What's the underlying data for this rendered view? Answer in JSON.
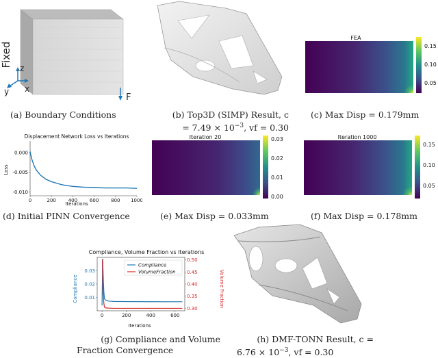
{
  "captions": {
    "a": "(a) Boundary Conditions",
    "b_line1": "(b) Top3D (SIMP) Result, c",
    "b_line2": "= 7.49 × 10",
    "b_exp": "−3",
    "b_tail": ", vf = 0.30",
    "c": "(c) Max Disp = 0.179mm",
    "d": "(d) Initial PINN Convergence",
    "e": "(e) Max Disp = 0.033mm",
    "f": "(f) Max Disp = 0.178mm",
    "g_line1": "(g) Compliance and Volume",
    "g_line2": "Fraction Convergence",
    "h_line1": "(h) DMF-TONN Result, c =",
    "h_line2": "6.76 × 10",
    "h_exp": "−3",
    "h_tail": ", vf = 0.30"
  },
  "panel_a": {
    "fixed_label": "Fixed",
    "axis_z": "z",
    "axis_y": "y",
    "axis_x": "x",
    "force_label": "F"
  },
  "panel_c": {
    "title": "FEA",
    "colorbar_ticks": [
      "0.15",
      "0.10",
      "0.05"
    ]
  },
  "panel_e": {
    "title": "Iteration 20",
    "colorbar_ticks": [
      "0.03",
      "0.02",
      "0.01",
      "0.00"
    ]
  },
  "panel_f": {
    "title": "Iteration 1000",
    "colorbar_ticks": [
      "0.15",
      "0.10",
      "0.05"
    ]
  },
  "chart_data": [
    {
      "id": "d",
      "type": "line",
      "title": "Displacement Network Loss vs Iterations",
      "xlabel": "Iterations",
      "ylabel": "Loss",
      "xlim": [
        0,
        1000
      ],
      "ylim": [
        -0.011,
        0.003
      ],
      "xticks": [
        "0",
        "200",
        "400",
        "600",
        "800",
        "1000"
      ],
      "yticks": [
        "0.000",
        "-0.005",
        "-0.010"
      ],
      "series": [
        {
          "color": "#1f77b4",
          "x": [
            0,
            10,
            20,
            40,
            60,
            100,
            150,
            200,
            300,
            400,
            500,
            600,
            700,
            800,
            900,
            1000
          ],
          "y": [
            0.0003,
            -0.001,
            -0.002,
            -0.0035,
            -0.0045,
            -0.0058,
            -0.0068,
            -0.0074,
            -0.0082,
            -0.0086,
            -0.0088,
            -0.0089,
            -0.009,
            -0.009,
            -0.009,
            -0.0091
          ]
        }
      ]
    },
    {
      "id": "g",
      "type": "line",
      "title": "Compliance, Volume Fraction vs Iterations",
      "xlabel": "Iterations",
      "ylabel_left": "Compliance",
      "ylabel_right": "Volume Fraction",
      "xlim": [
        -40,
        680
      ],
      "ylim_left": [
        0.0,
        0.04
      ],
      "ylim_right": [
        0.29,
        0.51
      ],
      "xticks": [
        "0",
        "200",
        "400",
        "600"
      ],
      "yticks_left": [
        "0.01",
        "0.02",
        "0.03"
      ],
      "yticks_right": [
        "0.50",
        "0.45",
        "0.40",
        "0.35",
        "0.30"
      ],
      "series": [
        {
          "name": "Compliance",
          "axis": "left",
          "color": "#1f77b4",
          "x": [
            0,
            5,
            10,
            15,
            20,
            30,
            40,
            60,
            100,
            200,
            400,
            600,
            660
          ],
          "y": [
            0.004,
            0.039,
            0.025,
            0.014,
            0.009,
            0.008,
            0.0075,
            0.0072,
            0.007,
            0.0069,
            0.0068,
            0.00677,
            0.00676
          ]
        },
        {
          "name": "VolumeFraction",
          "axis": "right",
          "color": "#d62728",
          "x": [
            0,
            3,
            6,
            10,
            15,
            20,
            30,
            50,
            100,
            200,
            400,
            600,
            660
          ],
          "y": [
            0.5,
            0.5,
            0.42,
            0.36,
            0.32,
            0.305,
            0.302,
            0.301,
            0.3,
            0.3,
            0.3,
            0.3,
            0.3
          ]
        }
      ]
    }
  ]
}
